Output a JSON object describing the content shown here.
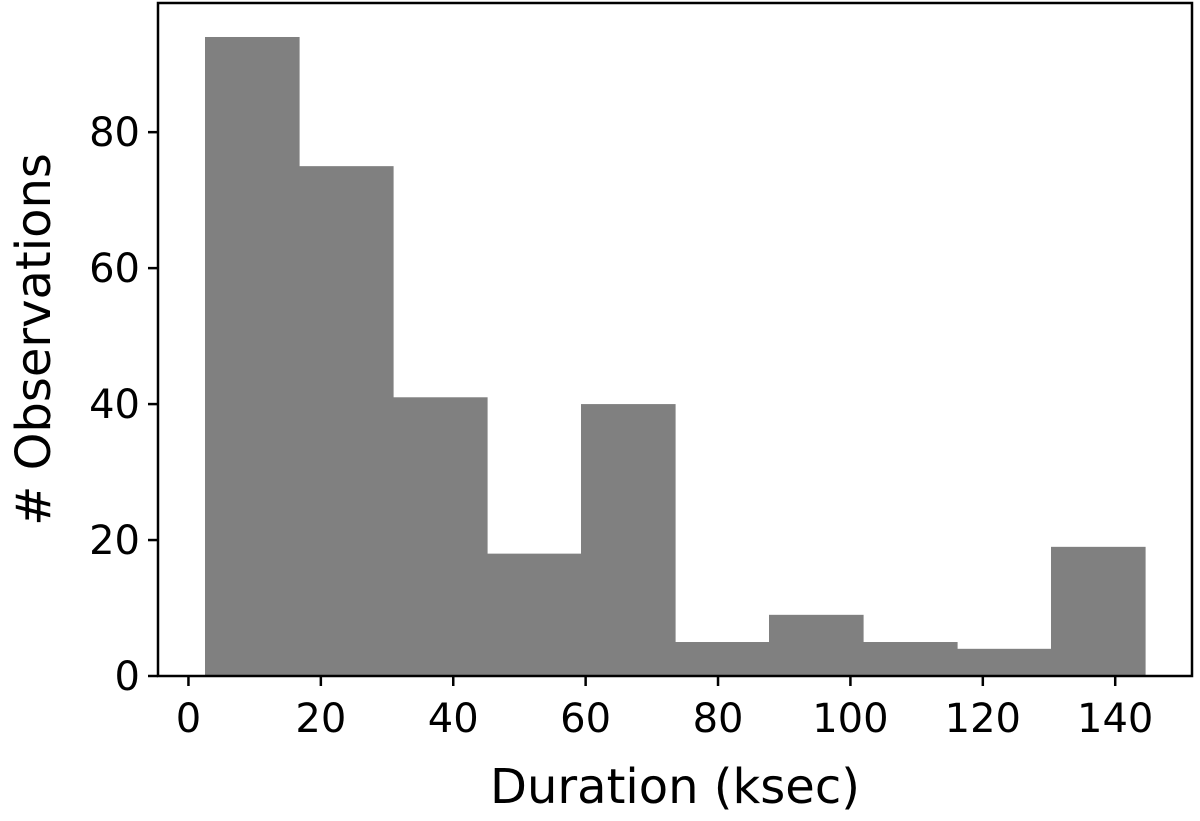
{
  "chart_data": {
    "type": "bar",
    "subtype": "histogram",
    "bins": [
      {
        "x0": 2.5,
        "x1": 16.7,
        "value": 94
      },
      {
        "x0": 16.7,
        "x1": 30.9,
        "value": 75
      },
      {
        "x0": 30.9,
        "x1": 45.1,
        "value": 41
      },
      {
        "x0": 45.1,
        "x1": 59.3,
        "value": 18
      },
      {
        "x0": 59.3,
        "x1": 73.5,
        "value": 40
      },
      {
        "x0": 73.5,
        "x1": 87.7,
        "value": 5
      },
      {
        "x0": 87.7,
        "x1": 101.9,
        "value": 9
      },
      {
        "x0": 101.9,
        "x1": 116.1,
        "value": 5
      },
      {
        "x0": 116.1,
        "x1": 130.3,
        "value": 4
      },
      {
        "x0": 130.3,
        "x1": 144.5,
        "value": 19
      }
    ],
    "xlabel": "Duration (ksec)",
    "ylabel": "# Observations",
    "xlim": [
      -4.6,
      151.6
    ],
    "ylim": [
      0,
      99
    ],
    "xticks": [
      0,
      20,
      40,
      60,
      80,
      100,
      120,
      140
    ],
    "yticks": [
      0,
      20,
      40,
      60,
      80
    ],
    "grid": false,
    "legend": "none",
    "bar_color": "#808080"
  }
}
